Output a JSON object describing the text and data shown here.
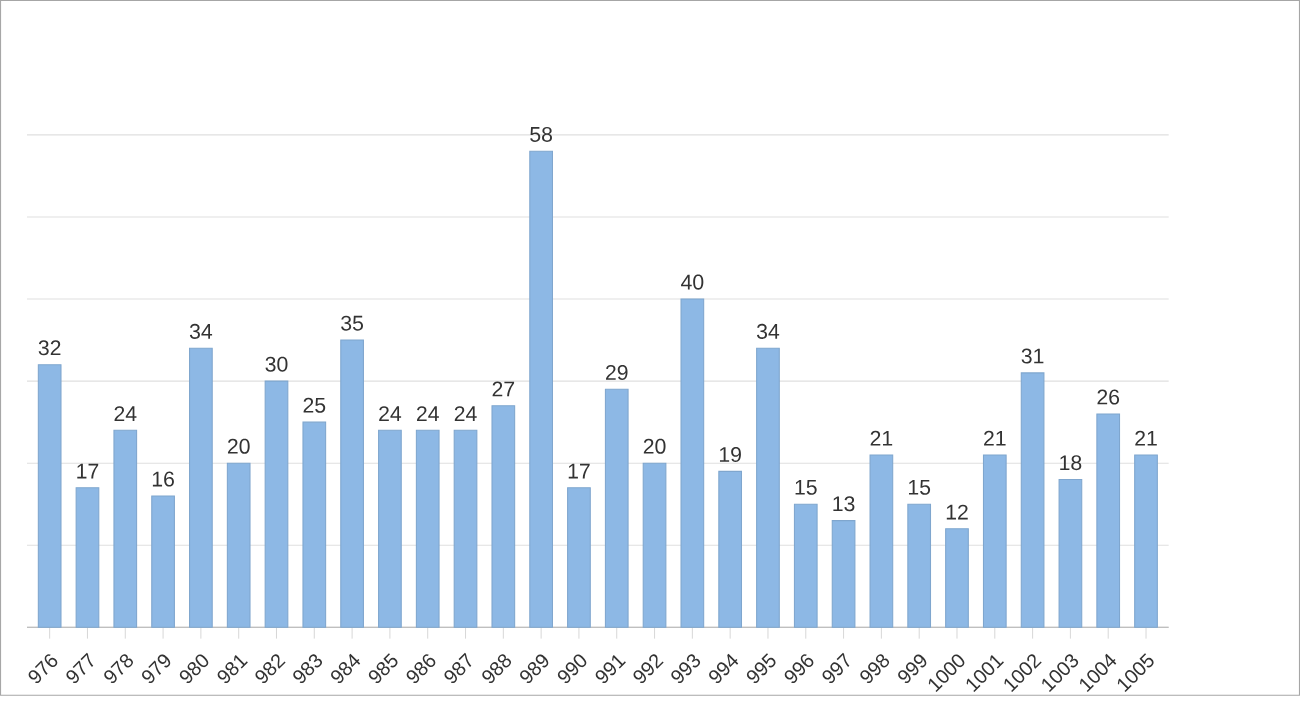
{
  "chart_data": {
    "type": "bar",
    "categories": [
      "976",
      "977",
      "978",
      "979",
      "980",
      "981",
      "982",
      "983",
      "984",
      "985",
      "986",
      "987",
      "988",
      "989",
      "990",
      "991",
      "992",
      "993",
      "994",
      "995",
      "996",
      "997",
      "998",
      "999",
      "1000",
      "1001",
      "1002",
      "1003",
      "1004",
      "1005"
    ],
    "values": [
      32,
      17,
      24,
      16,
      34,
      20,
      30,
      25,
      35,
      24,
      24,
      24,
      27,
      58,
      17,
      29,
      20,
      40,
      19,
      34,
      15,
      13,
      21,
      15,
      12,
      21,
      31,
      18,
      26,
      21
    ],
    "color": "#8db8e5",
    "tick_labels": "x",
    "grid": "y",
    "data_labels": true
  }
}
